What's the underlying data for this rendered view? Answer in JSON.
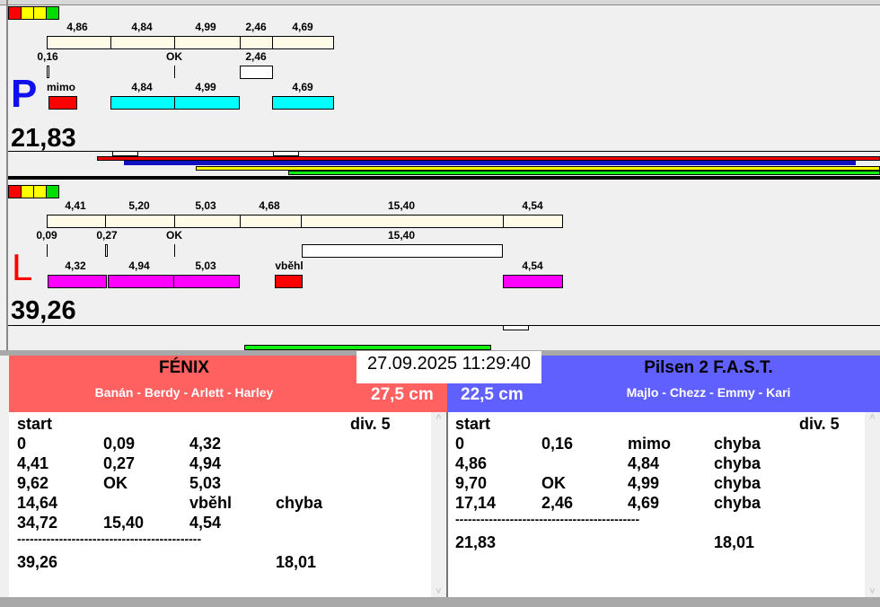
{
  "signal_colors": [
    "#ff0000",
    "#ffff00",
    "#ffff00",
    "#00dd00"
  ],
  "colors": {
    "bar_fill": "#fffbe6",
    "ok_bar": "#00ffff",
    "left_ok_bar": "#ff00ff",
    "error_bar": "#ff0000",
    "left_team": "#ff6060",
    "right_team": "#6060ff"
  },
  "p_panel": {
    "letter": "P",
    "row1": [
      "4,86",
      "4,84",
      "4,99",
      "2,46",
      "4,69"
    ],
    "row2": [
      "0,16",
      "OK",
      "2,46"
    ],
    "row3": [
      "mimo",
      "4,84",
      "4,99",
      "4,69"
    ],
    "total": "21,83"
  },
  "l_panel": {
    "letter": "L",
    "row1": [
      "4,41",
      "5,20",
      "5,03",
      "4,68",
      "15,40",
      "4,54"
    ],
    "row2": [
      "0,09",
      "0,27",
      "OK",
      "15,40"
    ],
    "row3": [
      "4,32",
      "4,94",
      "5,03",
      "vběhl",
      "4,54"
    ],
    "total": "39,26"
  },
  "datetime": "27.09.2025 11:29:40",
  "left_team": {
    "name": "FÉNIX",
    "members": "Banán - Berdy - Arlett - Harley",
    "height": "27,5 cm",
    "log": {
      "title": "start",
      "division": "div.  5",
      "rows": [
        [
          "0",
          "0,09",
          "4,32",
          ""
        ],
        [
          "4,41",
          "0,27",
          "4,94",
          ""
        ],
        [
          "9,62",
          "OK",
          "5,03",
          ""
        ],
        [
          "14,64",
          "",
          "vběhl",
          "chyba"
        ],
        [
          "34,72",
          "15,40",
          "4,54",
          ""
        ]
      ],
      "separator": "--------------------------------------------",
      "total": [
        "39,26",
        "",
        "",
        "18,01"
      ]
    }
  },
  "right_team": {
    "name": "Pilsen 2 F.A.S.T.",
    "members": "Majlo - Chezz - Emmy - Kari",
    "height": "22,5 cm",
    "log": {
      "title": "start",
      "division": "div.  5",
      "rows": [
        [
          "0",
          "0,16",
          "mimo",
          "chyba"
        ],
        [
          "4,86",
          "",
          "4,84",
          "chyba"
        ],
        [
          "9,70",
          "OK",
          "4,99",
          "chyba"
        ],
        [
          "17,14",
          "2,46",
          "4,69",
          "chyba"
        ]
      ],
      "separator": "--------------------------------------------",
      "total": [
        "21,83",
        "",
        "",
        "18,01"
      ]
    }
  }
}
